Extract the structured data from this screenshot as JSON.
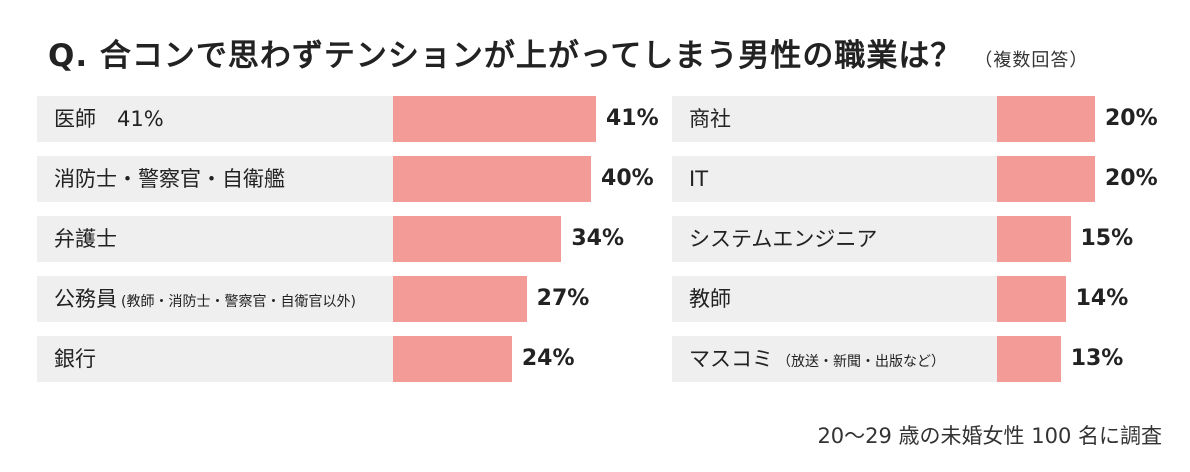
{
  "title": "Q. 合コンで思わずテンションが上がってしまう男性の職業は？",
  "title_note": "（複数回答）",
  "footnote": "20〜29 歳の未婚女性 100 名に調査",
  "colors": {
    "bar": "#f29b97",
    "label_bg": "#efefef"
  },
  "chart_data": [
    {
      "type": "bar",
      "orientation": "horizontal",
      "categories": [
        "医師　41%",
        "消防士・警察官・自衛艦",
        "弁護士",
        "公務員",
        "銀行"
      ],
      "category_notes": [
        "",
        "",
        "",
        "(教師・消防士・警察官・自衛官以外)",
        ""
      ],
      "values": [
        41,
        40,
        34,
        27,
        24
      ],
      "value_labels": [
        "41%",
        "40%",
        "34%",
        "27%",
        "24%"
      ],
      "unit": "%",
      "xlim": [
        0,
        41
      ]
    },
    {
      "type": "bar",
      "orientation": "horizontal",
      "categories": [
        "商社",
        "IT",
        "システムエンジニア",
        "教師",
        "マスコミ"
      ],
      "category_notes": [
        "",
        "",
        "",
        "",
        "（放送・新聞・出版など）"
      ],
      "values": [
        20,
        20,
        15,
        14,
        13
      ],
      "value_labels": [
        "20%",
        "20%",
        "15%",
        "14%",
        "13%"
      ],
      "unit": "%",
      "xlim": [
        0,
        20
      ]
    }
  ]
}
